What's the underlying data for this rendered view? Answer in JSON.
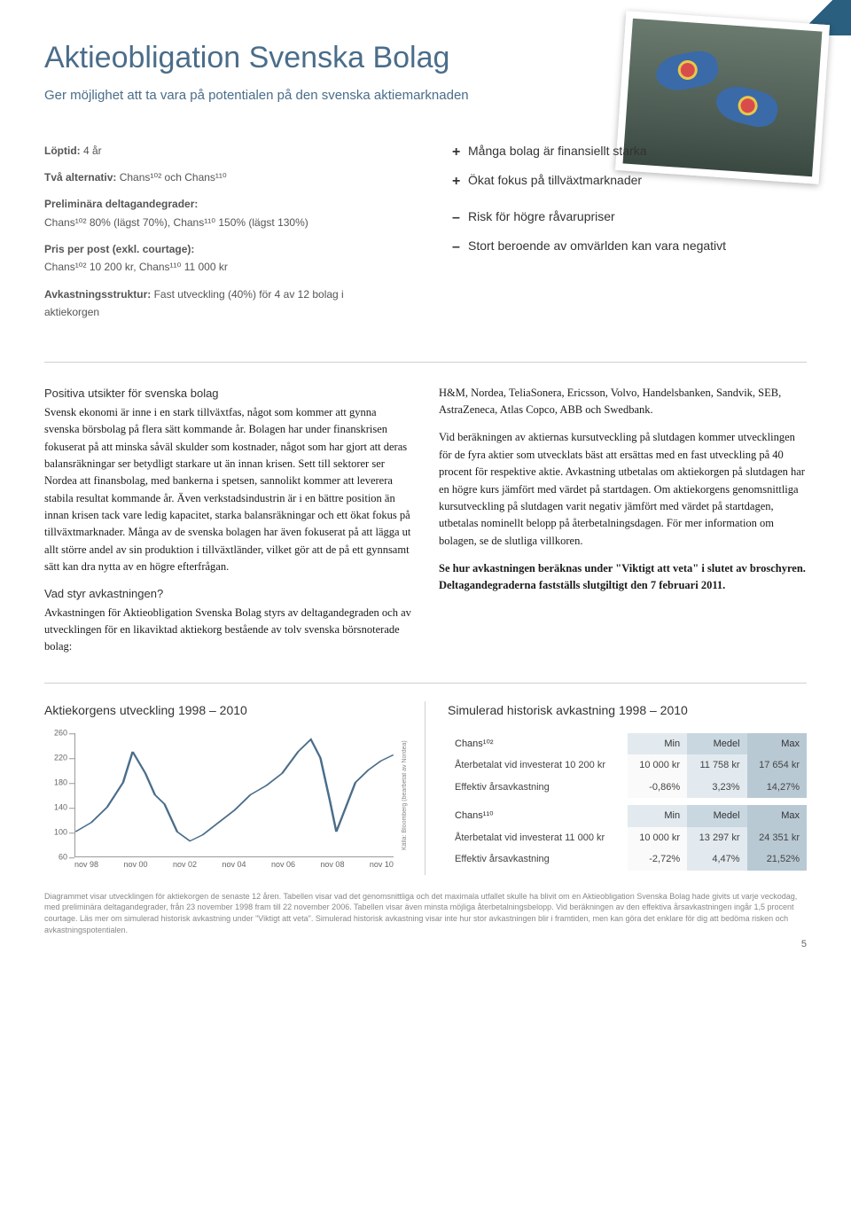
{
  "header": {
    "title": "Aktieobligation Svenska Bolag",
    "subtitle": "Ger möjlighet att ta vara på potentialen på den svenska aktiemarknaden"
  },
  "info": {
    "loptid_label": "Löptid:",
    "loptid_value": "4 år",
    "alternativ_label": "Två alternativ:",
    "alternativ_value": "Chans¹⁰² och Chans¹¹⁰",
    "deltagande_label": "Preliminära deltagandegrader:",
    "deltagande_value": "Chans¹⁰² 80% (lägst 70%), Chans¹¹⁰ 150% (lägst 130%)",
    "pris_label": "Pris per post (exkl. courtage):",
    "pris_value": "Chans¹⁰² 10 200 kr, Chans¹¹⁰ 11 000 kr",
    "avkast_label": "Avkastningsstruktur:",
    "avkast_value": "Fast utveckling (40%) för 4 av 12 bolag i aktiekorgen"
  },
  "plusminus": {
    "p1": "Många bolag är finansiellt starka",
    "p2": "Ökat fokus på tillväxtmarknader",
    "m1": "Risk för högre råvarupriser",
    "m2": "Stort beroende av omvärlden kan vara negativt"
  },
  "body": {
    "h1": "Positiva utsikter för svenska bolag",
    "p1": "Svensk ekonomi är inne i en stark tillväxtfas, något som kommer att gynna svenska börsbolag på flera sätt kommande år. Bolagen har under finanskrisen fokuserat på att minska såväl skulder som kostnader, något som har gjort att deras balansräkningar ser betydligt starkare ut än innan krisen. Sett till sektorer ser Nordea att finansbolag, med bankerna i spetsen, sannolikt kommer att leverera stabila resultat kommande år. Även verkstadsindustrin är i en bättre position än innan krisen tack vare ledig kapacitet, starka balansräkningar och ett ökat fokus på tillväxtmarknader. Många av de svenska bolagen har även fokuserat på att lägga ut allt större andel av sin produktion i tillväxtländer, vilket gör att de på ett gynnsamt sätt kan dra nytta av en högre efterfrågan.",
    "h2": "Vad styr avkastningen?",
    "p2": "Avkastningen för Aktieobligation Svenska Bolag styrs av deltagandegraden och av utvecklingen för en likaviktad aktiekorg bestående av tolv svenska börsnoterade bolag:",
    "p3": "H&M, Nordea, TeliaSonera, Ericsson, Volvo, Handelsbanken, Sandvik, SEB, AstraZeneca, Atlas Copco, ABB och Swedbank.",
    "p4": "Vid beräkningen av aktiernas kursutveckling på slutdagen kommer utvecklingen för de fyra aktier som utvecklats bäst att ersättas med en fast utveckling på 40 procent för respektive aktie. Avkastning utbetalas om aktiekorgen på slutdagen har en högre kurs jämfört med värdet på startdagen. Om aktiekorgens genomsnittliga kursutveckling på slutdagen varit negativ jämfört med värdet på startdagen, utbetalas nominellt belopp på återbetalningsdagen. För mer information om bolagen, se de slutliga villkoren.",
    "p5": "Se hur avkastningen beräknas under \"Viktigt att veta\" i slutet av broschyren. Deltagandegraderna fastställs slutgiltigt den 7 februari 2011."
  },
  "chart": {
    "title": "Aktiekorgens utveckling 1998 – 2010",
    "source": "Källa: Bloomberg (bearbetat av Nordea)",
    "ymin": 60,
    "ymax": 260,
    "yticks": [
      60,
      100,
      140,
      180,
      220,
      260
    ],
    "xlabels": [
      "nov 98",
      "nov 00",
      "nov 02",
      "nov 04",
      "nov 06",
      "nov 08",
      "nov 10"
    ],
    "line_color": "#4a6d8a",
    "points": [
      [
        0,
        100
      ],
      [
        5,
        115
      ],
      [
        10,
        140
      ],
      [
        15,
        180
      ],
      [
        18,
        230
      ],
      [
        22,
        195
      ],
      [
        25,
        160
      ],
      [
        28,
        145
      ],
      [
        32,
        100
      ],
      [
        36,
        85
      ],
      [
        40,
        95
      ],
      [
        45,
        115
      ],
      [
        50,
        135
      ],
      [
        55,
        160
      ],
      [
        60,
        175
      ],
      [
        65,
        195
      ],
      [
        70,
        230
      ],
      [
        74,
        250
      ],
      [
        77,
        220
      ],
      [
        80,
        150
      ],
      [
        82,
        100
      ],
      [
        85,
        140
      ],
      [
        88,
        180
      ],
      [
        92,
        200
      ],
      [
        96,
        215
      ],
      [
        100,
        225
      ]
    ]
  },
  "table": {
    "title": "Simulerad historisk avkastning 1998 – 2010",
    "headers": {
      "min": "Min",
      "medel": "Medel",
      "max": "Max"
    },
    "group1_label": "Chans¹⁰²",
    "g1_row1_label": "Återbetalat vid investerat 10 200 kr",
    "g1_row1": {
      "min": "10 000 kr",
      "med": "11 758 kr",
      "max": "17 654 kr"
    },
    "g1_row2_label": "Effektiv årsavkastning",
    "g1_row2": {
      "min": "-0,86%",
      "med": "3,23%",
      "max": "14,27%"
    },
    "group2_label": "Chans¹¹⁰",
    "g2_row1_label": "Återbetalat vid investerat 11 000 kr",
    "g2_row1": {
      "min": "10 000 kr",
      "med": "13 297 kr",
      "max": "24 351 kr"
    },
    "g2_row2_label": "Effektiv årsavkastning",
    "g2_row2": {
      "min": "-2,72%",
      "med": "4,47%",
      "max": "21,52%"
    }
  },
  "footnote": "Diagrammet visar utvecklingen för aktiekorgen de senaste 12 åren. Tabellen visar vad det genomsnittliga och det maximala utfallet skulle ha blivit om en Aktieobligation Svenska Bolag hade givits ut varje veckodag, med preliminära deltagandegrader, från 23 november 1998 fram till 22 november 2006. Tabellen visar även minsta möjliga återbetalningsbelopp. Vid beräkningen av den effektiva årsavkastningen ingår 1,5 procent courtage. Läs mer om simulerad historisk avkastning under \"Viktigt att veta\". Simulerad historisk avkastning visar inte hur stor avkastningen blir i framtiden, men kan göra det enklare för dig att bedöma risken och avkastningspotentialen.",
  "page_num": "5"
}
